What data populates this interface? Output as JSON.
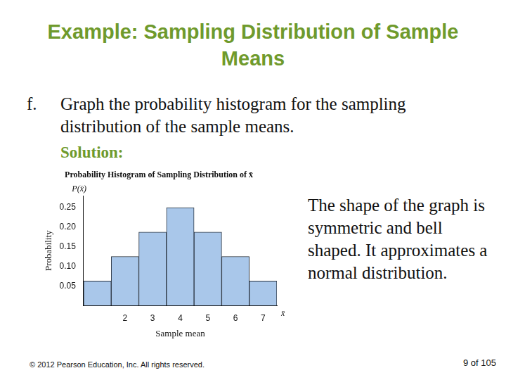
{
  "slide": {
    "title": "Example: Sampling Distribution of Sample Means",
    "item_letter": "f.",
    "item_text": "Graph the probability histogram for the sampling distribution of the sample means.",
    "solution": "Solution:",
    "note": "The shape of the graph is symmetric and bell shaped. It approximates a normal distribution.",
    "copyright": "© 2012 Pearson Education, Inc. All rights reserved.",
    "page": "9 of 105"
  },
  "chart_data": {
    "type": "bar",
    "title": "Probability Histogram of Sampling Distribution of x̄",
    "xlabel": "Sample mean",
    "ylabel": "Probability",
    "annotations": [
      "P(x̄)",
      "x̄"
    ],
    "categories": [
      null,
      "2",
      "3",
      "4",
      "5",
      "6",
      "7"
    ],
    "values": [
      0.0625,
      0.125,
      0.1875,
      0.25,
      0.1875,
      0.125,
      0.0625
    ],
    "color": "#a9c7ea",
    "ylim": [
      0,
      0.28
    ],
    "yticks": [
      0.05,
      {
        "value": 0.1,
        "label": "0.10"
      },
      0.15,
      {
        "value": 0.2,
        "label": "0.20"
      },
      0.25
    ],
    "grid": false
  }
}
